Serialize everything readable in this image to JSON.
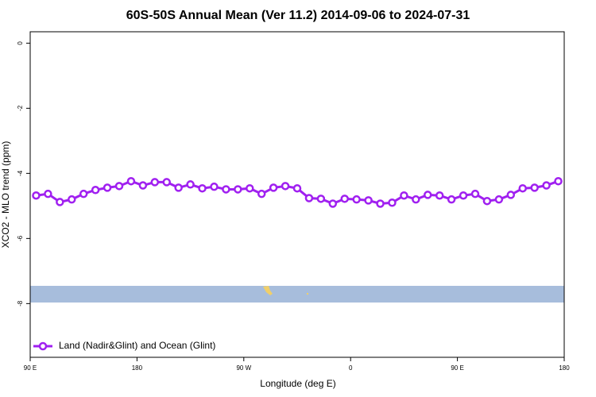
{
  "chart_data": {
    "type": "line",
    "title": "60S-50S Annual Mean (Ver 11.2)   2014-09-06 to 2024-07-31",
    "x_label": "Longitude (deg E)",
    "y_label": "XCO2 - MLO trend (ppm)",
    "x": [
      95,
      105,
      115,
      125,
      135,
      145,
      155,
      165,
      175,
      185,
      195,
      205,
      215,
      225,
      235,
      245,
      255,
      265,
      275,
      285,
      295,
      305,
      315,
      325,
      335,
      345,
      355,
      365,
      375,
      385,
      395,
      405,
      415,
      425,
      435,
      445,
      455,
      465,
      475,
      485,
      495,
      505,
      515,
      525,
      535
    ],
    "series": [
      {
        "name": "Land (Nadir&Glint) and Ocean (Glint)",
        "color": "#a020f0",
        "values": [
          -4.68,
          -4.63,
          -4.88,
          -4.8,
          -4.63,
          -4.51,
          -4.44,
          -4.39,
          -4.24,
          -4.37,
          -4.27,
          -4.27,
          -4.44,
          -4.34,
          -4.46,
          -4.41,
          -4.49,
          -4.49,
          -4.46,
          -4.63,
          -4.44,
          -4.39,
          -4.46,
          -4.76,
          -4.78,
          -4.93,
          -4.78,
          -4.8,
          -4.83,
          -4.93,
          -4.9,
          -4.68,
          -4.8,
          -4.66,
          -4.68,
          -4.8,
          -4.68,
          -4.63,
          -4.85,
          -4.8,
          -4.66,
          -4.46,
          -4.44,
          -4.37,
          -4.24
        ]
      }
    ],
    "xlim": [
      90,
      540
    ],
    "xticks": [
      {
        "value": 90,
        "label": "90 E"
      },
      {
        "value": 180,
        "label": "180"
      },
      {
        "value": 270,
        "label": "90 W"
      },
      {
        "value": 360,
        "label": "0"
      },
      {
        "value": 450,
        "label": "90 E"
      },
      {
        "value": 540,
        "label": "180"
      }
    ],
    "ylim": [
      -9.65,
      0.35
    ],
    "yticks": [
      0,
      -2,
      -4,
      -6,
      -8
    ],
    "legend": "bottom-left"
  }
}
